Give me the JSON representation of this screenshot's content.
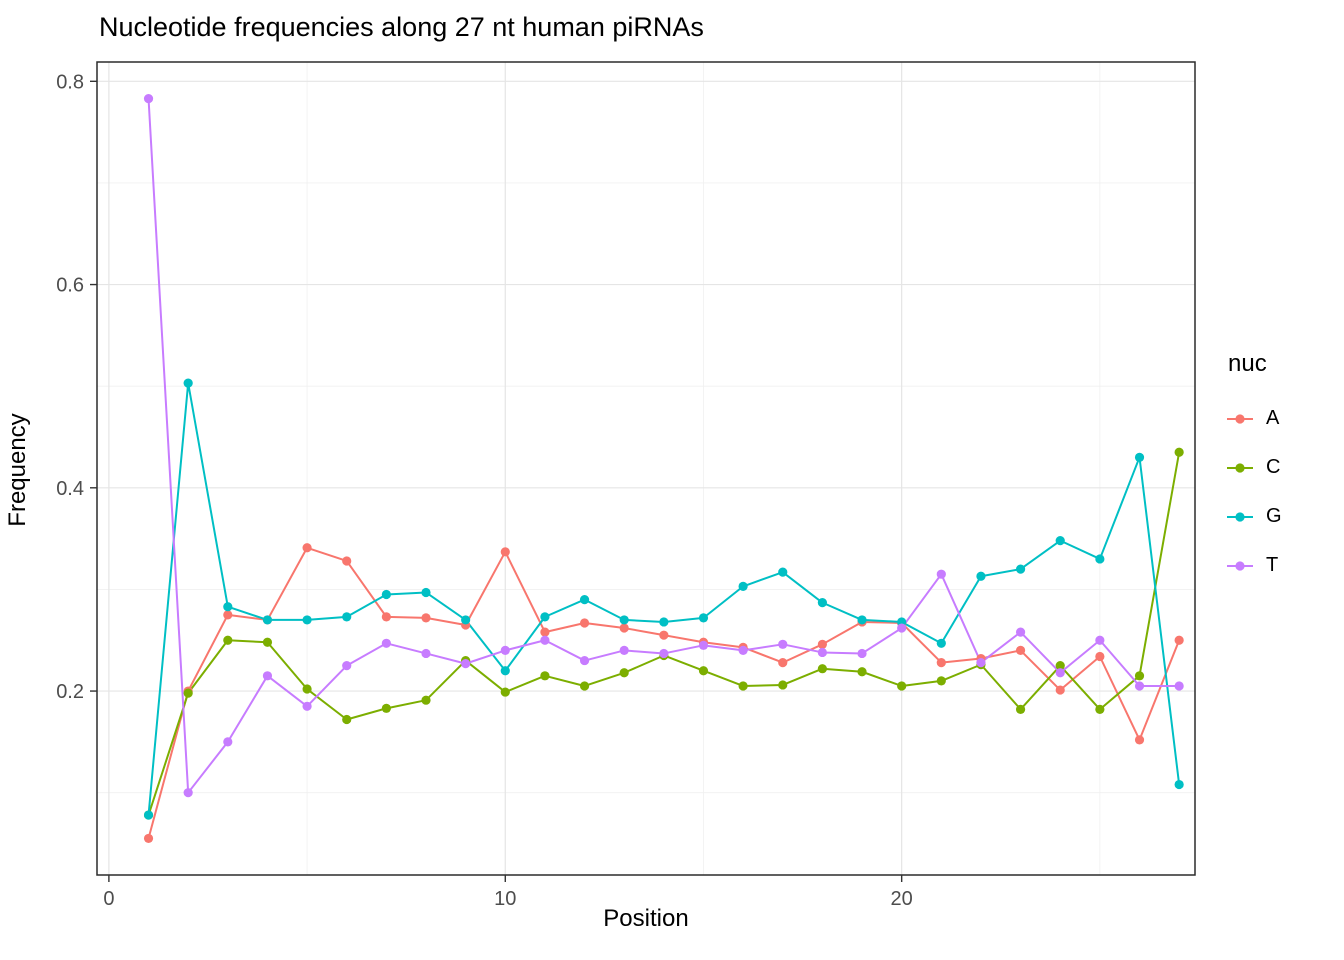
{
  "title": "Nucleotide frequencies along 27 nt human piRNAs",
  "chart_data": {
    "type": "line",
    "title": "Nucleotide frequencies along 27 nt human piRNAs",
    "xlabel": "Position",
    "ylabel": "Frequency",
    "legend_title": "nuc",
    "legend_position": "right",
    "grid": true,
    "xlim": [
      -0.3,
      27.4
    ],
    "ylim": [
      0.019,
      0.819
    ],
    "x_ticks": [
      0,
      10,
      20
    ],
    "x_tick_labels": [
      "0",
      "10",
      "20"
    ],
    "x_minor_ticks": [
      5,
      15,
      25
    ],
    "y_ticks": [
      0.2,
      0.4,
      0.6,
      0.8
    ],
    "y_tick_labels": [
      "0.2",
      "0.4",
      "0.6",
      "0.8"
    ],
    "y_minor_ticks": [
      0.1,
      0.3,
      0.5,
      0.7
    ],
    "x": [
      1,
      2,
      3,
      4,
      5,
      6,
      7,
      8,
      9,
      10,
      11,
      12,
      13,
      14,
      15,
      16,
      17,
      18,
      19,
      20,
      21,
      22,
      23,
      24,
      25,
      26,
      27
    ],
    "series": [
      {
        "name": "A",
        "color": "#F8766D",
        "values": [
          0.055,
          0.2,
          0.275,
          0.27,
          0.341,
          0.328,
          0.273,
          0.272,
          0.265,
          0.337,
          0.258,
          0.267,
          0.262,
          0.255,
          0.248,
          0.243,
          0.228,
          0.246,
          0.268,
          0.267,
          0.228,
          0.232,
          0.24,
          0.201,
          0.234,
          0.152,
          0.25
        ]
      },
      {
        "name": "C",
        "color": "#7CAE00",
        "values": [
          0.078,
          0.198,
          0.25,
          0.248,
          0.202,
          0.172,
          0.183,
          0.191,
          0.23,
          0.199,
          0.215,
          0.205,
          0.218,
          0.235,
          0.22,
          0.205,
          0.206,
          0.222,
          0.219,
          0.205,
          0.21,
          0.226,
          0.182,
          0.225,
          0.182,
          0.215,
          0.435
        ]
      },
      {
        "name": "G",
        "color": "#00BFC4",
        "values": [
          0.078,
          0.503,
          0.283,
          0.27,
          0.27,
          0.273,
          0.295,
          0.297,
          0.27,
          0.22,
          0.273,
          0.29,
          0.27,
          0.268,
          0.272,
          0.303,
          0.317,
          0.287,
          0.27,
          0.268,
          0.247,
          0.313,
          0.32,
          0.348,
          0.33,
          0.43,
          0.108
        ]
      },
      {
        "name": "T",
        "color": "#C77CFF",
        "values": [
          0.783,
          0.1,
          0.15,
          0.215,
          0.185,
          0.225,
          0.247,
          0.237,
          0.227,
          0.24,
          0.25,
          0.23,
          0.24,
          0.237,
          0.245,
          0.24,
          0.246,
          0.238,
          0.237,
          0.262,
          0.315,
          0.228,
          0.258,
          0.218,
          0.25,
          0.205,
          0.205
        ]
      }
    ],
    "style": {
      "panel_background": "#ffffff",
      "panel_border": "#2b2b2b",
      "grid_major": "#e5e5e5",
      "grid_minor": "#f0f0f0",
      "tick_color": "#333333",
      "tick_label_color": "#4d4d4d"
    }
  }
}
